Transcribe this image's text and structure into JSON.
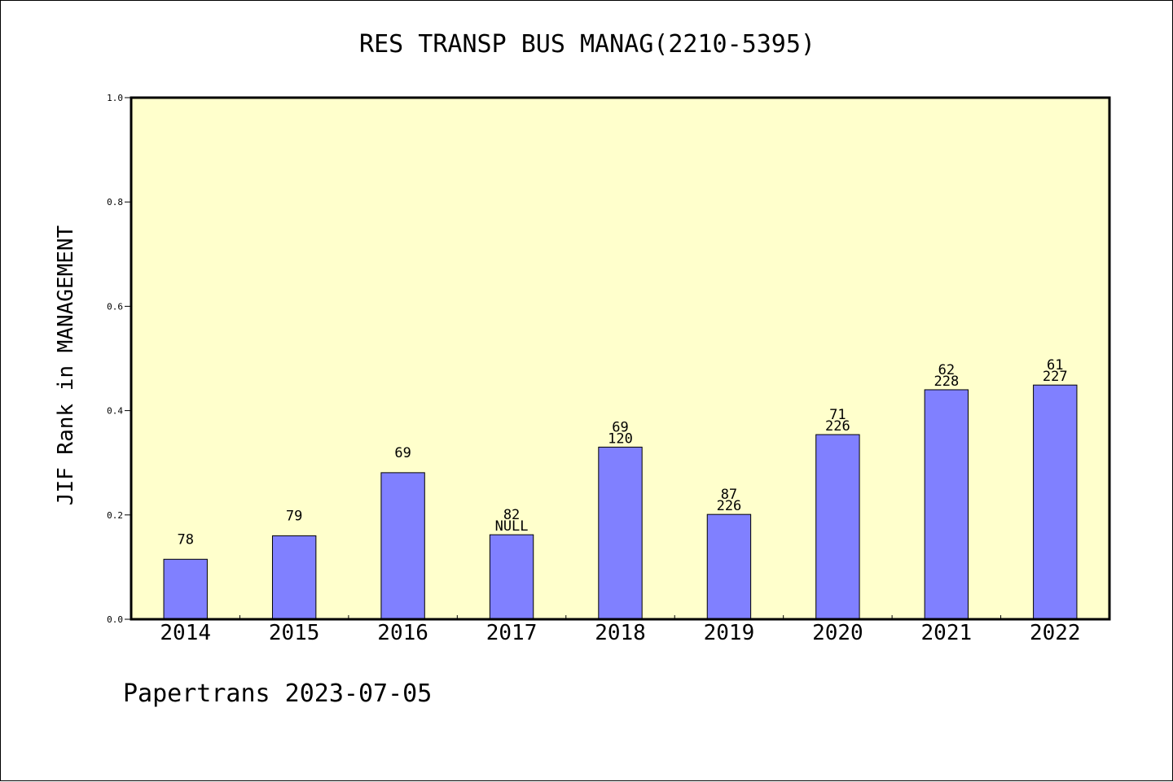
{
  "chart_data": {
    "type": "bar",
    "title": "RES TRANSP BUS MANAG(2210-5395)",
    "xlabel": "",
    "ylabel": "JIF Rank in MANAGEMENT",
    "ylim": [
      0,
      1.0
    ],
    "yticks": [
      "0.0",
      "0.2",
      "0.4",
      "0.6",
      "0.8",
      "1.0"
    ],
    "categories": [
      "2014",
      "2015",
      "2016",
      "2017",
      "2018",
      "2019",
      "2020",
      "2021",
      "2022"
    ],
    "values": [
      0.115,
      0.16,
      0.281,
      0.162,
      0.33,
      0.201,
      0.354,
      0.44,
      0.449
    ],
    "label_top": [
      "78",
      "79",
      "69",
      "82",
      "69",
      "87",
      "71",
      "62",
      "61"
    ],
    "label_bottom": [
      "",
      "",
      "",
      "NULL",
      "120",
      "226",
      "226",
      "228",
      "227"
    ],
    "bar_color": "#8080ff",
    "plot_bg": "#ffffcc",
    "grid": false
  },
  "footer": "Papertrans 2023-07-05"
}
